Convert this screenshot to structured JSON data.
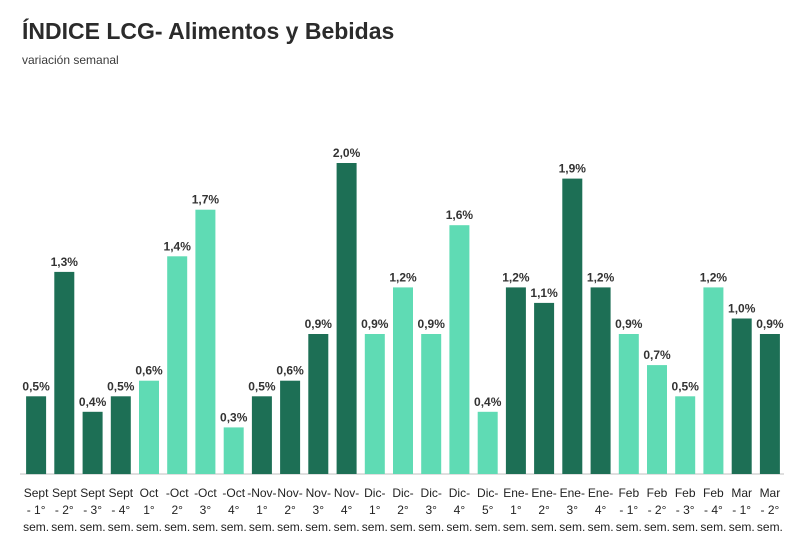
{
  "chart_data": {
    "type": "bar",
    "title": "ÍNDICE LCG- Alimentos y Bebidas",
    "subtitle": "variación semanal",
    "xlabel": "",
    "ylabel": "",
    "ylim": [
      0,
      2.0
    ],
    "grid": false,
    "legend": "none",
    "colors": {
      "dark": "#1d6f55",
      "light": "#5fdbb4"
    },
    "bars": [
      {
        "line1": "Sept",
        "line2": "- 1°",
        "line3": "sem.",
        "value": 0.5,
        "label": "0,5%",
        "shade": "dark"
      },
      {
        "line1": "Sept",
        "line2": "- 2°",
        "line3": "sem.",
        "value": 1.3,
        "label": "1,3%",
        "shade": "dark"
      },
      {
        "line1": "Sept",
        "line2": "- 3°",
        "line3": "sem.",
        "value": 0.4,
        "label": "0,4%",
        "shade": "dark"
      },
      {
        "line1": "Sept",
        "line2": "- 4°",
        "line3": "sem.",
        "value": 0.5,
        "label": "0,5%",
        "shade": "dark"
      },
      {
        "line1": "Oct",
        "line2": "1°",
        "line3": "sem.",
        "value": 0.6,
        "label": "0,6%",
        "shade": "light"
      },
      {
        "line1": "-Oct",
        "line2": "2°",
        "line3": "sem.",
        "value": 1.4,
        "label": "1,4%",
        "shade": "light"
      },
      {
        "line1": "-Oct",
        "line2": "3°",
        "line3": "sem.",
        "value": 1.7,
        "label": "1,7%",
        "shade": "light"
      },
      {
        "line1": "-Oct",
        "line2": "4°",
        "line3": "sem.",
        "value": 0.3,
        "label": "0,3%",
        "shade": "light"
      },
      {
        "line1": "-Nov-",
        "line2": "1°",
        "line3": "sem.",
        "value": 0.5,
        "label": "0,5%",
        "shade": "dark"
      },
      {
        "line1": "Nov-",
        "line2": "2°",
        "line3": "sem.",
        "value": 0.6,
        "label": "0,6%",
        "shade": "dark"
      },
      {
        "line1": "Nov-",
        "line2": "3°",
        "line3": "sem.",
        "value": 0.9,
        "label": "0,9%",
        "shade": "dark"
      },
      {
        "line1": "Nov-",
        "line2": "4°",
        "line3": "sem.",
        "value": 2.0,
        "label": "2,0%",
        "shade": "dark"
      },
      {
        "line1": "Dic-",
        "line2": "1°",
        "line3": "sem.",
        "value": 0.9,
        "label": "0,9%",
        "shade": "light"
      },
      {
        "line1": "Dic-",
        "line2": "2°",
        "line3": "sem.",
        "value": 1.2,
        "label": "1,2%",
        "shade": "light"
      },
      {
        "line1": "Dic-",
        "line2": "3°",
        "line3": "sem.",
        "value": 0.9,
        "label": "0,9%",
        "shade": "light"
      },
      {
        "line1": "Dic-",
        "line2": "4°",
        "line3": "sem.",
        "value": 1.6,
        "label": "1,6%",
        "shade": "light"
      },
      {
        "line1": "Dic-",
        "line2": "5°",
        "line3": "sem.",
        "value": 0.4,
        "label": "0,4%",
        "shade": "light"
      },
      {
        "line1": "Ene-",
        "line2": "1°",
        "line3": "sem.",
        "value": 1.2,
        "label": "1,2%",
        "shade": "dark"
      },
      {
        "line1": "Ene-",
        "line2": "2°",
        "line3": "sem.",
        "value": 1.1,
        "label": "1,1%",
        "shade": "dark"
      },
      {
        "line1": "Ene-",
        "line2": "3°",
        "line3": "sem.",
        "value": 1.9,
        "label": "1,9%",
        "shade": "dark"
      },
      {
        "line1": "Ene-",
        "line2": "4°",
        "line3": "sem.",
        "value": 1.2,
        "label": "1,2%",
        "shade": "dark"
      },
      {
        "line1": "Feb",
        "line2": "- 1°",
        "line3": "sem.",
        "value": 0.9,
        "label": "0,9%",
        "shade": "light"
      },
      {
        "line1": "Feb",
        "line2": "- 2°",
        "line3": "sem.",
        "value": 0.7,
        "label": "0,7%",
        "shade": "light"
      },
      {
        "line1": "Feb",
        "line2": "- 3°",
        "line3": "sem.",
        "value": 0.5,
        "label": "0,5%",
        "shade": "light"
      },
      {
        "line1": "Feb",
        "line2": "- 4°",
        "line3": "sem.",
        "value": 1.2,
        "label": "1,2%",
        "shade": "light"
      },
      {
        "line1": "Mar",
        "line2": "- 1°",
        "line3": "sem.",
        "value": 1.0,
        "label": "1,0%",
        "shade": "dark"
      },
      {
        "line1": "Mar",
        "line2": "- 2°",
        "line3": "sem.",
        "value": 0.9,
        "label": "0,9%",
        "shade": "dark"
      }
    ]
  }
}
